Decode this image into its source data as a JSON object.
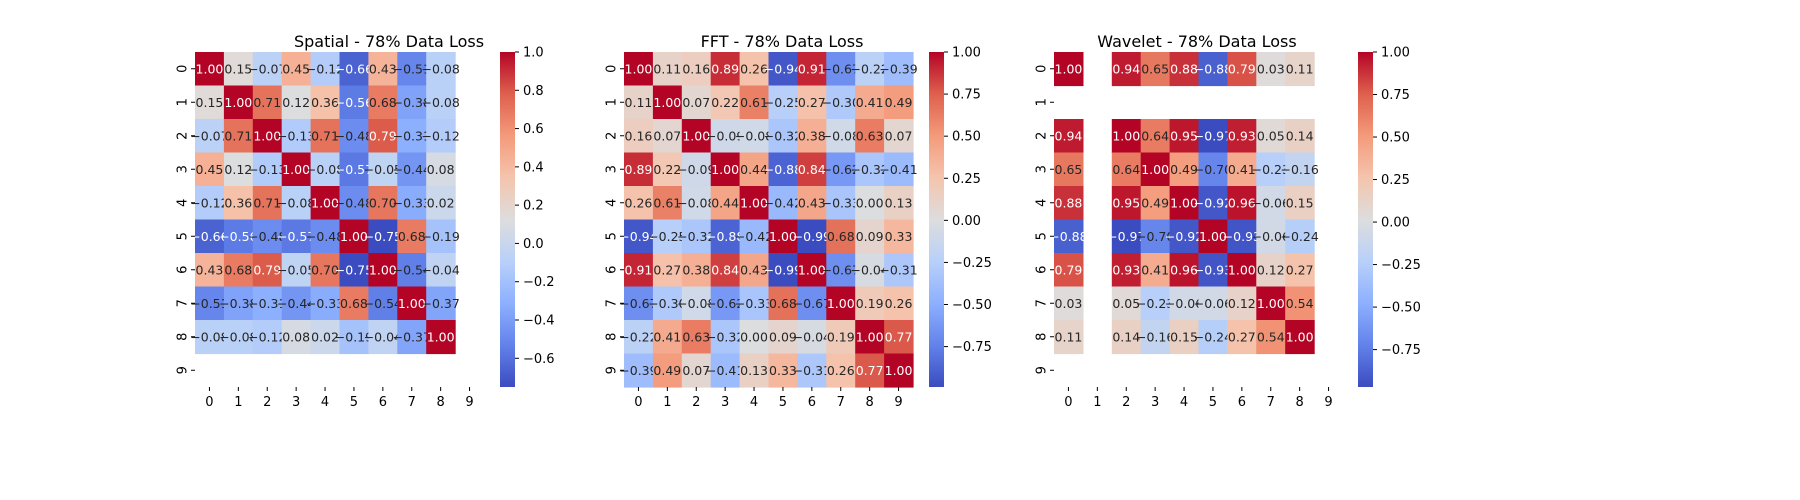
{
  "chart_data": [
    {
      "type": "heatmap",
      "title": "Spatial - 78% Data Loss",
      "x_categories": [
        "0",
        "1",
        "2",
        "3",
        "4",
        "5",
        "6",
        "7",
        "8",
        "9"
      ],
      "y_categories": [
        "0",
        "1",
        "2",
        "3",
        "4",
        "5",
        "6",
        "7",
        "8",
        "9"
      ],
      "value_format": "0.00",
      "missing": "null = blank cell",
      "colorbar": {
        "colormap": "coolwarm",
        "min": -0.75,
        "max": 1.0,
        "ticks": [
          -0.6,
          -0.4,
          -0.2,
          0.0,
          0.2,
          0.4,
          0.6,
          0.8,
          1.0
        ]
      },
      "values": [
        [
          1.0,
          0.15,
          -0.07,
          0.45,
          -0.12,
          -0.66,
          0.43,
          -0.51,
          -0.08,
          null
        ],
        [
          0.15,
          1.0,
          0.71,
          0.12,
          0.36,
          -0.56,
          0.68,
          -0.38,
          -0.08,
          null
        ],
        [
          -0.07,
          0.71,
          1.0,
          -0.13,
          0.71,
          -0.48,
          0.79,
          -0.31,
          -0.12,
          null
        ],
        [
          0.45,
          0.12,
          -0.13,
          1.0,
          -0.08,
          -0.57,
          -0.05,
          -0.44,
          0.08,
          null
        ],
        [
          -0.12,
          0.36,
          0.71,
          -0.08,
          1.0,
          -0.48,
          0.7,
          -0.33,
          0.02,
          null
        ],
        [
          -0.66,
          -0.56,
          -0.48,
          -0.57,
          -0.48,
          1.0,
          -0.75,
          0.68,
          -0.19,
          null
        ],
        [
          0.43,
          0.68,
          0.79,
          -0.05,
          0.7,
          -0.75,
          1.0,
          -0.54,
          -0.04,
          null
        ],
        [
          -0.51,
          -0.38,
          -0.31,
          -0.44,
          -0.33,
          0.68,
          -0.54,
          1.0,
          -0.37,
          null
        ],
        [
          -0.08,
          -0.08,
          -0.12,
          0.08,
          0.02,
          -0.19,
          -0.04,
          -0.37,
          1.0,
          null
        ],
        [
          null,
          null,
          null,
          null,
          null,
          null,
          null,
          null,
          null,
          null
        ]
      ]
    },
    {
      "type": "heatmap",
      "title": "FFT - 78% Data Loss",
      "x_categories": [
        "0",
        "1",
        "2",
        "3",
        "4",
        "5",
        "6",
        "7",
        "8",
        "9"
      ],
      "y_categories": [
        "0",
        "1",
        "2",
        "3",
        "4",
        "5",
        "6",
        "7",
        "8",
        "9"
      ],
      "value_format": "0.00",
      "colorbar": {
        "colormap": "coolwarm",
        "min": -0.99,
        "max": 1.0,
        "ticks": [
          -0.75,
          -0.5,
          -0.25,
          0.0,
          0.25,
          0.5,
          0.75,
          1.0
        ]
      },
      "values": [
        [
          1.0,
          0.11,
          0.16,
          0.89,
          0.26,
          -0.94,
          0.91,
          -0.67,
          -0.22,
          -0.39
        ],
        [
          0.11,
          1.0,
          0.07,
          0.22,
          0.61,
          -0.25,
          0.27,
          -0.3,
          0.41,
          0.49
        ],
        [
          0.16,
          0.07,
          1.0,
          -0.09,
          -0.08,
          -0.32,
          0.38,
          -0.08,
          0.63,
          0.07
        ],
        [
          0.89,
          0.22,
          -0.09,
          1.0,
          0.44,
          -0.88,
          0.84,
          -0.62,
          -0.32,
          -0.41
        ],
        [
          0.26,
          0.61,
          -0.08,
          0.44,
          1.0,
          -0.42,
          0.43,
          -0.33,
          0.0,
          0.13
        ],
        [
          -0.94,
          -0.25,
          -0.32,
          -0.88,
          -0.42,
          1.0,
          -0.99,
          0.68,
          0.09,
          0.33
        ],
        [
          0.91,
          0.27,
          0.38,
          0.84,
          0.43,
          -0.99,
          1.0,
          -0.67,
          -0.04,
          -0.31
        ],
        [
          -0.67,
          -0.3,
          -0.08,
          -0.62,
          -0.33,
          0.68,
          -0.67,
          1.0,
          0.19,
          0.26
        ],
        [
          -0.22,
          0.41,
          0.63,
          -0.32,
          0.0,
          0.09,
          -0.04,
          0.19,
          1.0,
          0.77
        ],
        [
          -0.39,
          0.49,
          0.07,
          -0.41,
          0.13,
          0.33,
          -0.31,
          0.26,
          0.77,
          1.0
        ]
      ]
    },
    {
      "type": "heatmap",
      "title": "Wavelet - 78% Data Loss",
      "x_categories": [
        "0",
        "1",
        "2",
        "3",
        "4",
        "5",
        "6",
        "7",
        "8",
        "9"
      ],
      "y_categories": [
        "0",
        "1",
        "2",
        "3",
        "4",
        "5",
        "6",
        "7",
        "8",
        "9"
      ],
      "value_format": "0.00",
      "colorbar": {
        "colormap": "coolwarm",
        "min": -0.97,
        "max": 1.0,
        "ticks": [
          -0.75,
          -0.5,
          -0.25,
          0.0,
          0.25,
          0.5,
          0.75,
          1.0
        ]
      },
      "values": [
        [
          1.0,
          null,
          0.94,
          0.65,
          0.88,
          -0.88,
          0.79,
          0.03,
          0.11,
          null
        ],
        [
          null,
          null,
          null,
          null,
          null,
          null,
          null,
          null,
          null,
          null
        ],
        [
          0.94,
          null,
          1.0,
          0.64,
          0.95,
          -0.97,
          0.93,
          0.05,
          0.14,
          null
        ],
        [
          0.65,
          null,
          0.64,
          1.0,
          0.49,
          -0.7,
          0.41,
          -0.23,
          -0.16,
          null
        ],
        [
          0.88,
          null,
          0.95,
          0.49,
          1.0,
          -0.92,
          0.96,
          -0.06,
          0.15,
          null
        ],
        [
          -0.88,
          null,
          -0.97,
          -0.7,
          -0.92,
          1.0,
          -0.93,
          -0.06,
          -0.24,
          null
        ],
        [
          0.79,
          null,
          0.93,
          0.41,
          0.96,
          -0.93,
          1.0,
          0.12,
          0.27,
          null
        ],
        [
          0.03,
          null,
          0.05,
          -0.23,
          -0.06,
          -0.06,
          0.12,
          1.0,
          0.54,
          null
        ],
        [
          0.11,
          null,
          0.14,
          -0.16,
          0.15,
          -0.24,
          0.27,
          0.54,
          1.0,
          null
        ],
        [
          null,
          null,
          null,
          null,
          null,
          null,
          null,
          null,
          null,
          null
        ]
      ]
    }
  ]
}
